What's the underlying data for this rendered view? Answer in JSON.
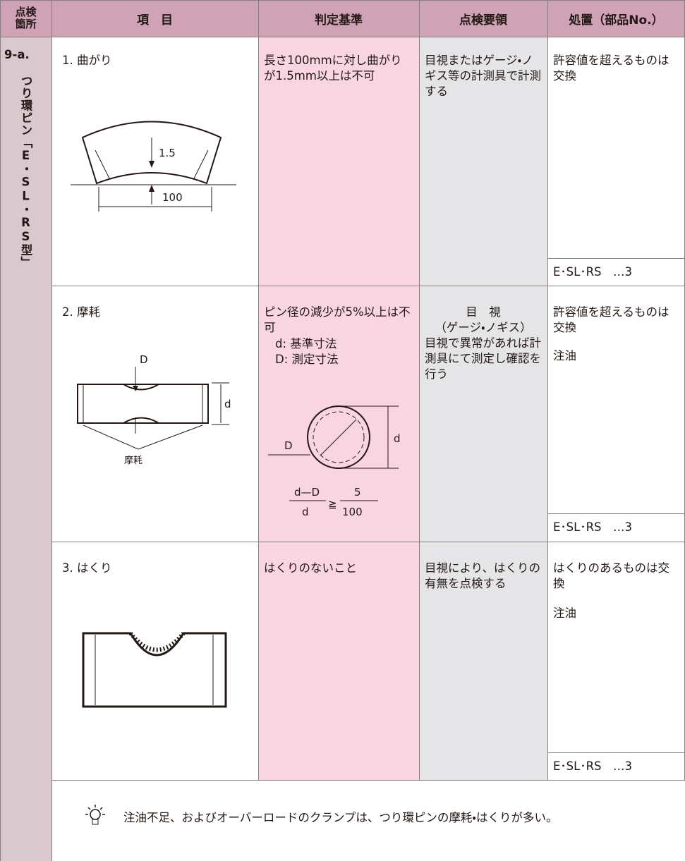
{
  "header": [
    "点検箇所",
    "項　目",
    "判定基準",
    "点検要領",
    "処置（部品No.）"
  ],
  "section": {
    "code": "9-a.",
    "name": "つり環ピン「E・SL・RS型」"
  },
  "rows": [
    {
      "item": "1. 曲がり",
      "figure_labels": [
        "1.5",
        "100"
      ],
      "criteria": [
        "長さ100mmに対し曲がりが1.5mm以上は不可"
      ],
      "method": [
        "目視またはゲージ・ノギス等の計測具で計測する"
      ],
      "action": [
        "許容値を超えるものは交換"
      ],
      "part": "E･SL･RS　…3"
    },
    {
      "item": "2. 摩耗",
      "figure_labels": [
        "D",
        "d",
        "摩耗"
      ],
      "criteria": [
        "ピン径の減少が5%以上は不可",
        "d:  基準寸法",
        "D:  測定寸法"
      ],
      "criteria_figure_labels": [
        "D",
        "d"
      ],
      "formula": {
        "numerator": "d—D",
        "denominator": "d",
        "relation": "≧",
        "right_numerator": "5",
        "right_denominator": "100"
      },
      "method": [
        "目　視",
        "（ゲージ・ノギス）",
        "目視で異常があれば計測具にて測定し確認を行う"
      ],
      "action": [
        "許容値を超えるものは交換",
        "注油"
      ],
      "part": "E･SL･RS　…3"
    },
    {
      "item": "3. はくり",
      "criteria": [
        "はくりのないこと"
      ],
      "method": [
        "目視により、はくりの有無を点検する"
      ],
      "action": [
        "はくりのあるものは交換",
        "注油"
      ],
      "part": "E･SL･RS　…3"
    }
  ],
  "note": "注油不足、およびオーバーロードのクランプは、つり環ピンの摩耗・はくりが多い。"
}
